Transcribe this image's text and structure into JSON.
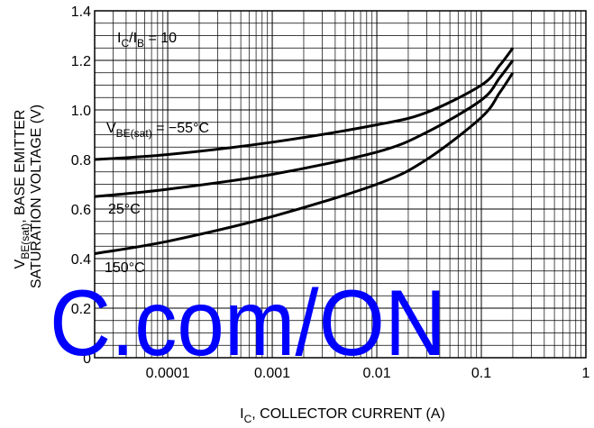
{
  "chart_data": {
    "type": "line",
    "xlabel": {
      "main": "I",
      "sub": "C",
      "rest": ", COLLECTOR CURRENT (A)"
    },
    "ylabel": {
      "pre": "V",
      "sub": "BE(sat)",
      "rest": ", BASE EMITTER",
      "line2": "SATURATION VOLTAGE (V)"
    },
    "x_scale": "log",
    "xlim": [
      2e-05,
      1
    ],
    "ylim": [
      0,
      1.4
    ],
    "x_ticks": [
      {
        "value": 0.0001,
        "label": "0.0001"
      },
      {
        "value": 0.001,
        "label": "0.001"
      },
      {
        "value": 0.01,
        "label": "0.01"
      },
      {
        "value": 0.1,
        "label": "0.1"
      },
      {
        "value": 1,
        "label": "1"
      }
    ],
    "y_ticks": [
      {
        "value": 0,
        "label": "0"
      },
      {
        "value": 0.2,
        "label": "0.2"
      },
      {
        "value": 0.4,
        "label": "0.4"
      },
      {
        "value": 0.6,
        "label": "0.6"
      },
      {
        "value": 0.8,
        "label": "0.8"
      },
      {
        "value": 1.0,
        "label": "1.0"
      },
      {
        "value": 1.2,
        "label": "1.2"
      },
      {
        "value": 1.4,
        "label": "1.4"
      }
    ],
    "grid": true,
    "series": [
      {
        "label_parts": {
          "main": "V",
          "sub": "BE(sat)",
          "rest": " = −55°C"
        },
        "x": [
          2e-05,
          0.0001,
          0.001,
          0.01,
          0.03,
          0.1,
          0.15,
          0.2
        ],
        "y": [
          0.8,
          0.82,
          0.87,
          0.94,
          0.99,
          1.1,
          1.18,
          1.25
        ]
      },
      {
        "label_parts": {
          "main": "25°C"
        },
        "x": [
          2e-05,
          0.0001,
          0.001,
          0.01,
          0.03,
          0.1,
          0.15,
          0.2
        ],
        "y": [
          0.65,
          0.68,
          0.74,
          0.83,
          0.91,
          1.04,
          1.13,
          1.2
        ]
      },
      {
        "label_parts": {
          "main": "150°C"
        },
        "x": [
          2e-05,
          0.0001,
          0.001,
          0.01,
          0.03,
          0.1,
          0.15,
          0.2
        ],
        "y": [
          0.42,
          0.47,
          0.57,
          0.7,
          0.8,
          0.97,
          1.07,
          1.15
        ]
      }
    ],
    "annotations": {
      "ratio": {
        "main": "I",
        "sub1": "C",
        "mid": "/I",
        "sub2": "B",
        "rest": " = 10"
      }
    },
    "watermark": "C.com/ON",
    "colors": {
      "line": "#000000",
      "grid": "#000000",
      "watermark": "#0000ff"
    }
  }
}
